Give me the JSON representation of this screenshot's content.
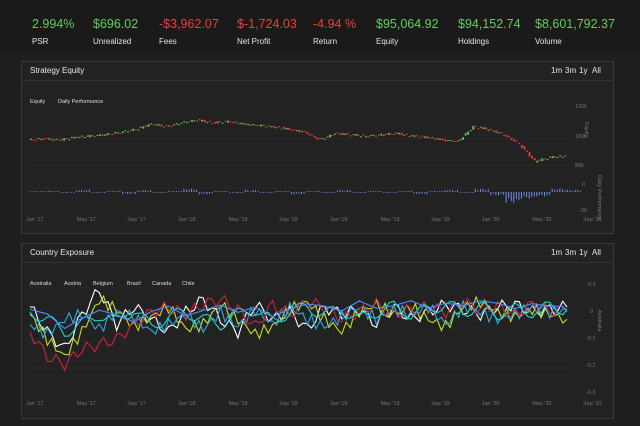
{
  "stats": [
    {
      "value": "2.994%",
      "label": "PSR",
      "tone": "pos"
    },
    {
      "value": "$696.02",
      "label": "Unrealized",
      "tone": "pos"
    },
    {
      "value": "-$3,962.07",
      "label": "Fees",
      "tone": "neg"
    },
    {
      "value": "$-1,724.03",
      "label": "Net Profit",
      "tone": "neg"
    },
    {
      "value": "-4.94 %",
      "label": "Return",
      "tone": "neg"
    },
    {
      "value": "$95,064.92",
      "label": "Equity",
      "tone": "pos"
    },
    {
      "value": "$94,152.74",
      "label": "Holdings",
      "tone": "pos"
    },
    {
      "value": "$8,601,792.37",
      "label": "Volume",
      "tone": "pos"
    }
  ],
  "equity_panel": {
    "title": "Strategy Equity",
    "ranges": [
      "1m",
      "3m",
      "1y",
      "All"
    ],
    "legend": [
      "Equity",
      "Daily Performance"
    ],
    "right_axis_title": "Equity",
    "right_axis_title2": "Daily Performance",
    "y_ticks": [
      "120k",
      "100k",
      "80k"
    ],
    "y_ticks2": [
      "0",
      "-20"
    ]
  },
  "country_panel": {
    "title": "Country Exposure",
    "ranges": [
      "1m",
      "3m",
      "1y",
      "All"
    ],
    "legend": [
      "Australia",
      "Austria",
      "Belgium",
      "Brazil",
      "Canada",
      "Chile"
    ],
    "right_axis_title": "Australia",
    "y_ticks": [
      "0.1",
      "0",
      "-0.1",
      "-0.2",
      "-0.3"
    ]
  },
  "x_ticks": [
    "Jan '17",
    "May '17",
    "Sep '17",
    "Jan '18",
    "May '18",
    "Sep '18",
    "Jan '19",
    "May '19",
    "Sep '19",
    "Jan '20",
    "May '20",
    "Sep '20"
  ],
  "colors": {
    "positive": "#5fcf5f",
    "negative": "#ef3d3d",
    "bar": "#6f8fe8",
    "series": [
      "#ffffff",
      "#c0e020",
      "#2fa8e0",
      "#d02040",
      "#1bd8d0",
      "#4a8cff"
    ]
  },
  "chart_data": [
    {
      "type": "line",
      "title": "Strategy Equity",
      "series": [
        {
          "name": "Equity",
          "values": [
            100,
            101,
            100,
            102,
            103,
            104,
            106,
            108,
            112,
            110,
            113,
            115,
            113,
            114,
            112,
            111,
            110,
            108,
            106,
            100,
            105,
            104,
            103,
            104,
            105,
            103,
            102,
            100,
            99,
            110,
            108,
            104,
            97,
            84,
            87,
            88
          ]
        }
      ],
      "series2": [
        {
          "name": "Daily Performance",
          "values": [
            0,
            1,
            -1,
            2,
            -1,
            1,
            -2,
            2,
            -1,
            1,
            3,
            -2,
            1,
            -1,
            2,
            -1,
            1,
            -2,
            1,
            -1,
            2,
            -1,
            1,
            -1,
            1,
            -2,
            1,
            2,
            -1,
            3,
            -3,
            -10,
            -6,
            -4,
            3,
            2
          ]
        }
      ],
      "ylabel": "Equity",
      "ylim": [
        70000,
        130000
      ]
    },
    {
      "type": "line",
      "title": "Country Exposure",
      "series": [
        {
          "name": "Australia",
          "values": [
            0.05,
            -0.05,
            -0.12,
            0.02,
            0.12,
            -0.02,
            0.05,
            0.0,
            -0.05,
            0.03,
            0.08,
            0.0,
            -0.05,
            0.06,
            0.0,
            0.03,
            -0.04,
            0.05,
            0.02,
            0.04,
            -0.02,
            0.05,
            0.0,
            0.03,
            0.06,
            0.04,
            0.02,
            0.05,
            0.06,
            0.03,
            0.04,
            0.05
          ]
        },
        {
          "name": "Austria",
          "values": [
            0.02,
            -0.08,
            -0.15,
            -0.05,
            0.08,
            0.04,
            -0.03,
            0.01,
            0.05,
            -0.04,
            -0.02,
            0.06,
            0.0,
            -0.06,
            -0.03,
            0.04,
            0.07,
            0.0,
            -0.05,
            0.03,
            0.06,
            0.02,
            0.05,
            0.0,
            -0.03,
            0.05,
            0.07,
            0.03,
            0.01,
            0.04,
            0.02,
            0.0
          ]
        },
        {
          "name": "Belgium",
          "values": [
            -0.02,
            -0.06,
            0.0,
            0.02,
            -0.04,
            0.03,
            0.01,
            -0.05,
            -0.02,
            0.02,
            -0.04,
            0.03,
            -0.03,
            0.04,
            -0.02,
            0.05,
            0.0,
            -0.03,
            0.01,
            0.05,
            0.0,
            0.04,
            0.02,
            0.05,
            -0.02,
            0.05,
            0.03,
            0.0,
            0.02,
            0.05,
            0.03,
            0.04
          ]
        },
        {
          "name": "Brazil",
          "values": [
            -0.05,
            -0.15,
            -0.18,
            -0.12,
            -0.1,
            -0.08,
            -0.02,
            0.03,
            0.05,
            0.02,
            0.06,
            0.08,
            0.04,
            -0.03,
            0.06,
            0.02,
            0.07,
            0.05,
            0.0,
            0.03,
            0.06,
            0.02,
            0.04,
            0.05,
            0.03,
            0.07,
            0.04,
            0.05,
            0.02,
            0.06,
            0.03,
            0.04
          ]
        },
        {
          "name": "Canada",
          "values": [
            0.03,
            0.0,
            -0.05,
            -0.02,
            0.02,
            -0.01,
            0.04,
            -0.03,
            0.01,
            0.03,
            0.0,
            -0.02,
            0.02,
            0.04,
            -0.01,
            0.03,
            0.05,
            0.02,
            0.04,
            0.0,
            0.03,
            0.05,
            0.02,
            0.04,
            0.06,
            0.03,
            0.05,
            0.02,
            0.04,
            0.03,
            0.05,
            0.04
          ]
        },
        {
          "name": "Chile",
          "values": [
            0.04,
            0.02,
            -0.04,
            0.0,
            0.03,
            0.01,
            -0.02,
            0.02,
            0.04,
            0.0,
            0.02,
            0.04,
            0.01,
            0.03,
            -0.01,
            0.02,
            0.04,
            0.03,
            0.01,
            0.05,
            0.02,
            0.03,
            0.05,
            0.02,
            0.04,
            0.03,
            0.05,
            0.04,
            0.02,
            0.04,
            0.03,
            0.03
          ]
        }
      ],
      "ylim": [
        -0.3,
        0.15
      ]
    }
  ]
}
